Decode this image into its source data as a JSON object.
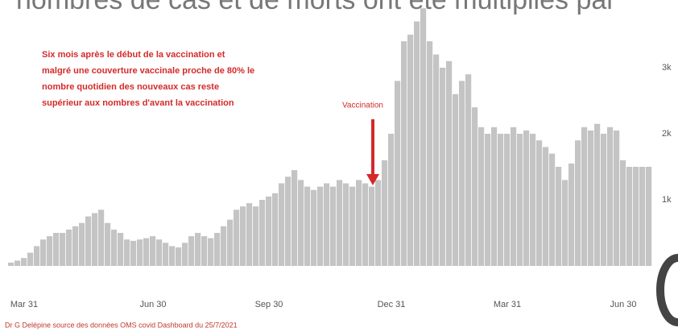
{
  "chart_data": {
    "type": "bar",
    "title": "nombres de cas et de morts ont été multipliés par",
    "annotation": [
      "Six mois après le début de la vaccination et",
      "malgré une couverture vaccinale proche de 80% le",
      "nombre quotidien des nouveaux cas reste",
      "supérieur aux nombres d'avant la vaccination"
    ],
    "marker_label": "Vaccination",
    "source": "Dr G Delépine source des données OMS covid Dashboard du 25/7/2021",
    "color": "#c4c4c4",
    "ylim": [
      0,
      4000
    ],
    "yticks": [
      {
        "value": 1000,
        "label": "1k"
      },
      {
        "value": 2000,
        "label": "2k"
      },
      {
        "value": 3000,
        "label": "3k"
      }
    ],
    "categories": [
      null,
      null,
      "Mar 31",
      null,
      null,
      null,
      null,
      null,
      null,
      null,
      null,
      null,
      null,
      null,
      null,
      null,
      null,
      null,
      null,
      null,
      null,
      null,
      "Jun 30",
      null,
      null,
      null,
      null,
      null,
      null,
      null,
      null,
      null,
      null,
      null,
      null,
      null,
      null,
      null,
      null,
      null,
      "Sep 30",
      null,
      null,
      null,
      null,
      null,
      null,
      null,
      null,
      null,
      null,
      null,
      null,
      null,
      null,
      null,
      null,
      null,
      null,
      "Dec 31",
      null,
      null,
      null,
      null,
      null,
      null,
      null,
      null,
      null,
      null,
      null,
      null,
      null,
      null,
      null,
      null,
      null,
      "Mar 31",
      null,
      null,
      null,
      null,
      null,
      null,
      null,
      null,
      null,
      null,
      null,
      null,
      null,
      null,
      null,
      null,
      null,
      "Jun 30",
      null,
      null,
      null,
      null
    ],
    "values": [
      50,
      80,
      120,
      200,
      300,
      400,
      450,
      500,
      500,
      550,
      600,
      650,
      750,
      800,
      850,
      650,
      550,
      500,
      400,
      380,
      400,
      420,
      450,
      400,
      350,
      300,
      280,
      350,
      450,
      500,
      450,
      420,
      500,
      600,
      700,
      850,
      900,
      950,
      900,
      1000,
      1050,
      1100,
      1250,
      1350,
      1450,
      1300,
      1200,
      1150,
      1200,
      1250,
      1200,
      1300,
      1250,
      1200,
      1300,
      1250,
      1200,
      1300,
      1600,
      2000,
      2800,
      3400,
      3500,
      3700,
      3900,
      3400,
      3200,
      3000,
      3100,
      2600,
      2800,
      2900,
      2400,
      2100,
      2000,
      2100,
      2000,
      2000,
      2100,
      2000,
      2050,
      2000,
      1900,
      1800,
      1700,
      1500,
      1300,
      1550,
      1900,
      2100,
      2050,
      2150,
      2000,
      2100,
      2050,
      1600,
      1500,
      1500,
      1500,
      1500
    ]
  }
}
